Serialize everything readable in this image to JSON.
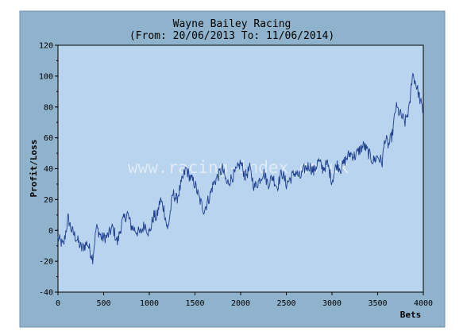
{
  "chart_data": {
    "type": "line",
    "title": "Wayne Bailey Racing",
    "subtitle": "(From: 20/06/2013 To: 11/06/2014)",
    "xlabel": "Bets",
    "ylabel": "Profit/Loss",
    "xlim": [
      0,
      4000
    ],
    "ylim": [
      -40,
      120
    ],
    "x_ticks": [
      "0",
      "500",
      "1000",
      "1500",
      "2000",
      "2500",
      "3000",
      "3500",
      "4000"
    ],
    "y_ticks": [
      "120",
      "100",
      "80",
      "60",
      "40",
      "20",
      "0",
      "-20",
      "-40"
    ],
    "grid": false,
    "watermark": "www.racing-index.co.uk",
    "colors": {
      "outer_background": "#8fb3cc",
      "plot_background": "#b8d4ee",
      "line": "#1f3f8f"
    },
    "series": [
      {
        "x": [
          0,
          60,
          110,
          150,
          200,
          260,
          320,
          380,
          420,
          480,
          540,
          600,
          650,
          700,
          760,
          800,
          850,
          900,
          950,
          1000,
          1050,
          1080,
          1120,
          1160,
          1200,
          1260,
          1300,
          1350,
          1400,
          1450,
          1500,
          1550,
          1600,
          1660,
          1700,
          1750,
          1800,
          1850,
          1900,
          1950,
          2000,
          2050,
          2100,
          2150,
          2200,
          2250,
          2300,
          2350,
          2400,
          2450,
          2500,
          2550,
          2600,
          2650,
          2700,
          2750,
          2800,
          2850,
          2900,
          2950,
          3000,
          3050,
          3100,
          3150,
          3200,
          3250,
          3300,
          3350,
          3400,
          3450,
          3500,
          3550,
          3580,
          3620,
          3660,
          3700,
          3750,
          3800,
          3850,
          3880,
          3920,
          3950,
          4000
        ],
        "y": [
          -5,
          -10,
          8,
          0,
          -5,
          -12,
          -8,
          -18,
          2,
          -5,
          -4,
          2,
          -8,
          5,
          11,
          3,
          0,
          -2,
          4,
          -2,
          10,
          8,
          20,
          14,
          0,
          24,
          20,
          30,
          40,
          34,
          30,
          20,
          13,
          22,
          30,
          35,
          40,
          30,
          34,
          38,
          44,
          35,
          40,
          28,
          32,
          38,
          30,
          35,
          28,
          38,
          30,
          34,
          38,
          34,
          40,
          42,
          38,
          45,
          40,
          43,
          32,
          43,
          40,
          46,
          50,
          48,
          52,
          55,
          50,
          45,
          48,
          44,
          60,
          55,
          62,
          80,
          75,
          70,
          80,
          102,
          95,
          88,
          76
        ]
      }
    ]
  }
}
